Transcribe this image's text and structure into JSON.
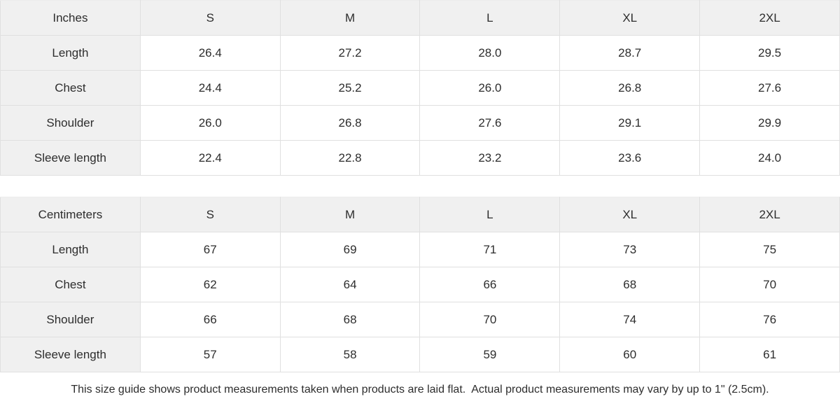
{
  "tables": [
    {
      "unit_label": "Inches",
      "sizes": [
        "S",
        "M",
        "L",
        "XL",
        "2XL"
      ],
      "rows": [
        {
          "label": "Length",
          "values": [
            "26.4",
            "27.2",
            "28.0",
            "28.7",
            "29.5"
          ]
        },
        {
          "label": "Chest",
          "values": [
            "24.4",
            "25.2",
            "26.0",
            "26.8",
            "27.6"
          ]
        },
        {
          "label": "Shoulder",
          "values": [
            "26.0",
            "26.8",
            "27.6",
            "29.1",
            "29.9"
          ]
        },
        {
          "label": "Sleeve length",
          "values": [
            "22.4",
            "22.8",
            "23.2",
            "23.6",
            "24.0"
          ]
        }
      ]
    },
    {
      "unit_label": "Centimeters",
      "sizes": [
        "S",
        "M",
        "L",
        "XL",
        "2XL"
      ],
      "rows": [
        {
          "label": "Length",
          "values": [
            "67",
            "69",
            "71",
            "73",
            "75"
          ]
        },
        {
          "label": "Chest",
          "values": [
            "62",
            "64",
            "66",
            "68",
            "70"
          ]
        },
        {
          "label": "Shoulder",
          "values": [
            "66",
            "68",
            "70",
            "74",
            "76"
          ]
        },
        {
          "label": "Sleeve length",
          "values": [
            "57",
            "58",
            "59",
            "60",
            "61"
          ]
        }
      ]
    }
  ],
  "footer": {
    "note": "This size guide shows product measurements taken when products are laid flat.  Actual product measurements may vary by up to 1\" (2.5cm)."
  },
  "colors": {
    "header_cell_bg": "#f0f0f0",
    "data_cell_bg": "#ffffff",
    "border": "#e0e0e0",
    "text": "#2d2d2d"
  }
}
